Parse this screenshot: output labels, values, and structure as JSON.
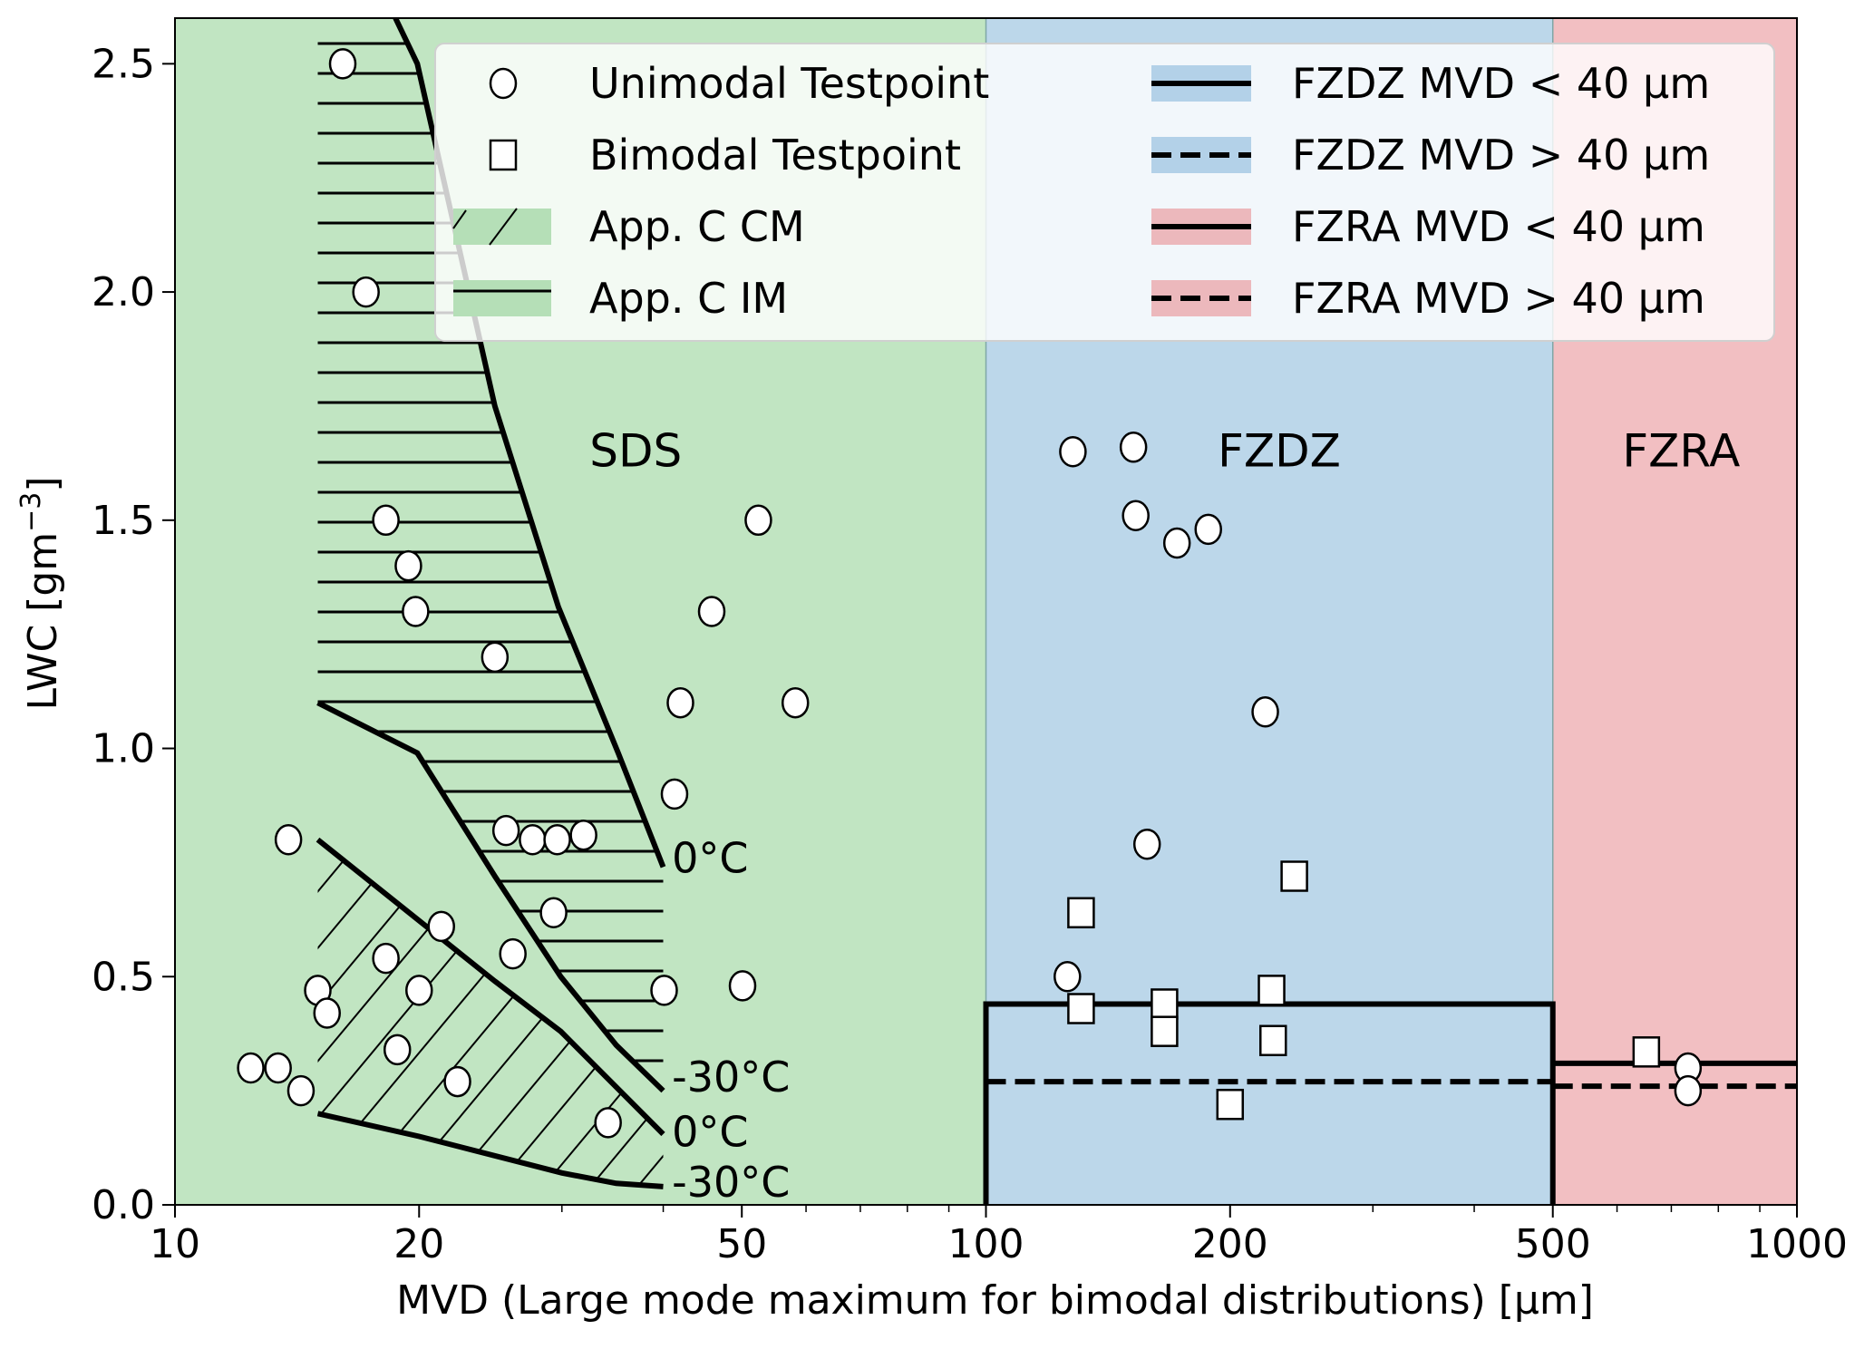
{
  "chart_data": {
    "type": "scatter",
    "title": "",
    "xlabel": "MVD (Large mode maximum for bimodal distributions) [µm]",
    "ylabel": "LWC [gm⁻³]",
    "ylabel_base": "LWC [gm",
    "ylabel_exp": "−3",
    "ylabel_end": "]",
    "xscale": "log",
    "xlim": [
      10,
      1000
    ],
    "ylim": [
      0,
      2.6
    ],
    "xticks": [
      10,
      20,
      50,
      100,
      200,
      500,
      1000
    ],
    "xtick_labels": [
      "10",
      "20",
      "50",
      "100",
      "200",
      "500",
      "1000"
    ],
    "xminor_ticks": [
      30,
      40,
      60,
      70,
      80,
      90,
      300,
      400,
      600,
      700,
      800,
      900
    ],
    "yticks": [
      0.0,
      0.5,
      1.0,
      1.5,
      2.0,
      2.5
    ],
    "ytick_labels": [
      "0.0",
      "0.5",
      "1.0",
      "1.5",
      "2.0",
      "2.5"
    ],
    "grid": false,
    "legend_position": "top-right",
    "regions": [
      {
        "name": "SDS",
        "x_range": [
          10,
          100
        ],
        "color": "#c1e5c2",
        "label_x": 37,
        "label_y": 1.65
      },
      {
        "name": "FZDZ",
        "x_range": [
          100,
          500
        ],
        "color": "#bcd7ea",
        "label_x": 230,
        "label_y": 1.65
      },
      {
        "name": "FZRA",
        "x_range": [
          500,
          1000
        ],
        "color": "#f2bfc2",
        "label_x": 720,
        "label_y": 1.65
      }
    ],
    "envelopes": {
      "appendix_c_im": {
        "label": "App. C IM",
        "hatch": "horizontal",
        "upper_0C": [
          [
            18.7,
            2.6
          ],
          [
            19.9,
            2.5
          ],
          [
            24.8,
            1.75
          ],
          [
            29.7,
            1.31
          ],
          [
            35.2,
            0.99
          ],
          [
            40,
            0.74
          ]
        ],
        "lower_minus30C": [
          [
            15,
            1.1
          ],
          [
            19.9,
            0.99
          ],
          [
            24.8,
            0.72
          ],
          [
            29.9,
            0.5
          ],
          [
            35,
            0.35
          ],
          [
            40,
            0.25
          ]
        ],
        "hatch_left_x": 15,
        "hatch_right_x": 40
      },
      "appendix_c_cm": {
        "label": "App. C CM",
        "hatch": "diagonal",
        "upper_0C": [
          [
            15,
            0.8
          ],
          [
            24.8,
            0.49
          ],
          [
            29.9,
            0.38
          ],
          [
            40,
            0.155
          ]
        ],
        "lower_minus30C": [
          [
            15,
            0.2
          ],
          [
            20,
            0.15
          ],
          [
            30,
            0.07
          ],
          [
            35,
            0.047
          ],
          [
            40,
            0.04
          ]
        ]
      }
    },
    "annotations": [
      {
        "text": "0°C",
        "x": 41,
        "y": 0.76
      },
      {
        "text": "-30°C",
        "x": 41,
        "y": 0.28
      },
      {
        "text": "0°C",
        "x": 41,
        "y": 0.16
      },
      {
        "text": "-30°C",
        "x": 41,
        "y": 0.05
      }
    ],
    "envelope_lines": [
      {
        "name": "FZDZ MVD < 40 µm",
        "style": "solid",
        "x_range": [
          100,
          500
        ],
        "y": 0.44,
        "with_sides": true
      },
      {
        "name": "FZDZ MVD > 40 µm",
        "style": "dashed",
        "x_range": [
          100,
          500
        ],
        "y": 0.27
      },
      {
        "name": "FZRA MVD < 40 µm",
        "style": "solid",
        "x_range": [
          500,
          1000
        ],
        "y": 0.31
      },
      {
        "name": "FZRA MVD > 40 µm",
        "style": "dashed",
        "x_range": [
          500,
          1000
        ],
        "y": 0.26
      }
    ],
    "series": [
      {
        "name": "Unimodal Testpoint",
        "marker": "circle",
        "points": [
          [
            16.1,
            2.5
          ],
          [
            17.2,
            2.0
          ],
          [
            18.2,
            1.5
          ],
          [
            19.4,
            1.4
          ],
          [
            19.8,
            1.3
          ],
          [
            24.8,
            1.2
          ],
          [
            52.4,
            1.5
          ],
          [
            45.9,
            1.3
          ],
          [
            42.0,
            1.1
          ],
          [
            58.2,
            1.1
          ],
          [
            41.3,
            0.9
          ],
          [
            25.6,
            0.82
          ],
          [
            27.6,
            0.8
          ],
          [
            29.6,
            0.8
          ],
          [
            31.9,
            0.81
          ],
          [
            13.8,
            0.8
          ],
          [
            21.3,
            0.61
          ],
          [
            29.3,
            0.64
          ],
          [
            18.2,
            0.54
          ],
          [
            26.1,
            0.55
          ],
          [
            15.0,
            0.47
          ],
          [
            15.4,
            0.42
          ],
          [
            20.0,
            0.47
          ],
          [
            18.8,
            0.34
          ],
          [
            12.4,
            0.3
          ],
          [
            13.4,
            0.3
          ],
          [
            14.3,
            0.25
          ],
          [
            22.3,
            0.27
          ],
          [
            34.2,
            0.18
          ],
          [
            40.1,
            0.47
          ],
          [
            50.1,
            0.48
          ],
          [
            128,
            1.65
          ],
          [
            152,
            1.66
          ],
          [
            153,
            1.51
          ],
          [
            172,
            1.45
          ],
          [
            188,
            1.48
          ],
          [
            221,
            1.08
          ],
          [
            158,
            0.79
          ],
          [
            126,
            0.5
          ],
          [
            734,
            0.3
          ],
          [
            734,
            0.25
          ]
        ]
      },
      {
        "name": "Bimodal Testpoint",
        "marker": "square",
        "points": [
          [
            131,
            0.64
          ],
          [
            240,
            0.72
          ],
          [
            131,
            0.43
          ],
          [
            166,
            0.44
          ],
          [
            166,
            0.38
          ],
          [
            225,
            0.47
          ],
          [
            226,
            0.36
          ],
          [
            200,
            0.22
          ],
          [
            652,
            0.335
          ]
        ]
      }
    ],
    "legend": {
      "left_column": [
        {
          "label": "Unimodal Testpoint",
          "symbol": "circle"
        },
        {
          "label": "Bimodal Testpoint",
          "symbol": "square"
        },
        {
          "label": "App. C CM",
          "symbol": "hatch-diagonal",
          "color": "#b5dfb7"
        },
        {
          "label": "App. C IM",
          "symbol": "hatch-horizontal",
          "color": "#b5dfb7"
        }
      ],
      "right_column": [
        {
          "label": "FZDZ MVD",
          "rel": "<",
          "value": "40 µm",
          "symbol": "solid",
          "color": "#b3d1e8"
        },
        {
          "label": "FZDZ MVD",
          "rel": ">",
          "value": "40 µm",
          "symbol": "dashed",
          "color": "#b3d1e8"
        },
        {
          "label": "FZRA MVD",
          "rel": "<",
          "value": "40 µm",
          "symbol": "solid",
          "color": "#ecb8bc"
        },
        {
          "label": "FZRA MVD",
          "rel": ">",
          "value": "40 µm",
          "symbol": "dashed",
          "color": "#ecb8bc"
        }
      ]
    }
  }
}
